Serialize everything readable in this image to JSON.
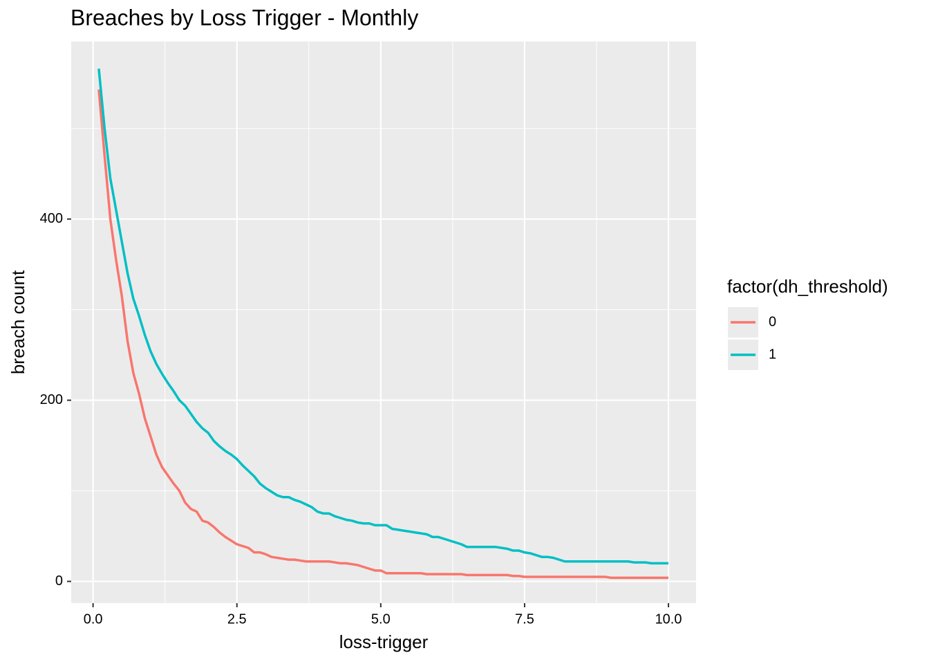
{
  "chart_data": {
    "type": "line",
    "title": "Breaches by Loss Trigger - Monthly",
    "x_label": "loss-trigger",
    "y_label": "breach count",
    "legend_title": "factor(dh_threshold)",
    "legend_position": "right",
    "x": [
      0.1,
      0.2,
      0.3,
      0.4,
      0.5,
      0.6,
      0.7,
      0.8,
      0.9,
      1.0,
      1.1,
      1.2,
      1.3,
      1.4,
      1.5,
      1.6,
      1.7,
      1.8,
      1.9,
      2.0,
      2.1,
      2.2,
      2.3,
      2.4,
      2.5,
      2.6,
      2.7,
      2.8,
      2.9,
      3.0,
      3.1,
      3.2,
      3.3,
      3.4,
      3.5,
      3.6,
      3.7,
      3.8,
      3.9,
      4.0,
      4.1,
      4.2,
      4.3,
      4.4,
      4.5,
      4.6,
      4.7,
      4.8,
      4.9,
      5.0,
      5.1,
      5.2,
      5.3,
      5.4,
      5.5,
      5.6,
      5.7,
      5.8,
      5.9,
      6.0,
      6.1,
      6.2,
      6.3,
      6.4,
      6.5,
      6.6,
      6.7,
      6.8,
      6.9,
      7.0,
      7.1,
      7.2,
      7.3,
      7.4,
      7.5,
      7.6,
      7.7,
      7.8,
      7.9,
      8.0,
      8.1,
      8.2,
      8.3,
      8.4,
      8.5,
      8.6,
      8.7,
      8.8,
      8.9,
      9.0,
      9.1,
      9.2,
      9.3,
      9.4,
      9.5,
      9.6,
      9.7,
      9.8,
      9.9,
      10.0
    ],
    "series": [
      {
        "name": "0",
        "color": "#F8766D",
        "values": [
          543,
          470,
          400,
          355,
          315,
          265,
          230,
          207,
          180,
          160,
          140,
          126,
          117,
          108,
          100,
          87,
          80,
          77,
          67,
          65,
          60,
          54,
          49,
          45,
          41,
          39,
          37,
          32,
          32,
          30,
          27,
          26,
          25,
          24,
          24,
          23,
          22,
          22,
          22,
          22,
          22,
          21,
          20,
          20,
          19,
          18,
          16,
          14,
          12,
          12,
          9,
          9,
          9,
          9,
          9,
          9,
          9,
          8,
          8,
          8,
          8,
          8,
          8,
          8,
          7,
          7,
          7,
          7,
          7,
          7,
          7,
          7,
          6,
          6,
          5,
          5,
          5,
          5,
          5,
          5,
          5,
          5,
          5,
          5,
          5,
          5,
          5,
          5,
          5,
          4,
          4,
          4,
          4,
          4,
          4,
          4,
          4,
          4,
          4,
          4
        ]
      },
      {
        "name": "1",
        "color": "#00BFC4",
        "values": [
          566,
          500,
          445,
          410,
          375,
          340,
          312,
          293,
          272,
          254,
          240,
          229,
          219,
          210,
          200,
          194,
          185,
          176,
          169,
          164,
          155,
          149,
          144,
          140,
          135,
          128,
          122,
          116,
          108,
          103,
          99,
          95,
          93,
          93,
          90,
          88,
          85,
          82,
          77,
          75,
          75,
          72,
          70,
          68,
          67,
          65,
          64,
          64,
          62,
          62,
          62,
          58,
          57,
          56,
          55,
          54,
          53,
          52,
          49,
          49,
          47,
          45,
          43,
          41,
          38,
          38,
          38,
          38,
          38,
          38,
          37,
          36,
          34,
          34,
          32,
          31,
          29,
          27,
          27,
          26,
          24,
          22,
          22,
          22,
          22,
          22,
          22,
          22,
          22,
          22,
          22,
          22,
          22,
          21,
          21,
          21,
          20,
          20,
          20,
          20
        ]
      }
    ],
    "xlim": [
      -0.38,
      10.48
    ],
    "ylim": [
      -24,
      596
    ],
    "xticks": [
      {
        "value": 0,
        "label": "0.0"
      },
      2.5,
      {
        "value": 5,
        "label": "5.0"
      },
      7.5,
      {
        "value": 10,
        "label": "10.0"
      }
    ],
    "yticks": [
      0,
      200,
      400
    ],
    "minor_xticks": [
      1.25,
      3.75,
      6.25,
      8.75
    ],
    "minor_yticks": [
      100,
      300,
      500
    ],
    "grid": true
  }
}
